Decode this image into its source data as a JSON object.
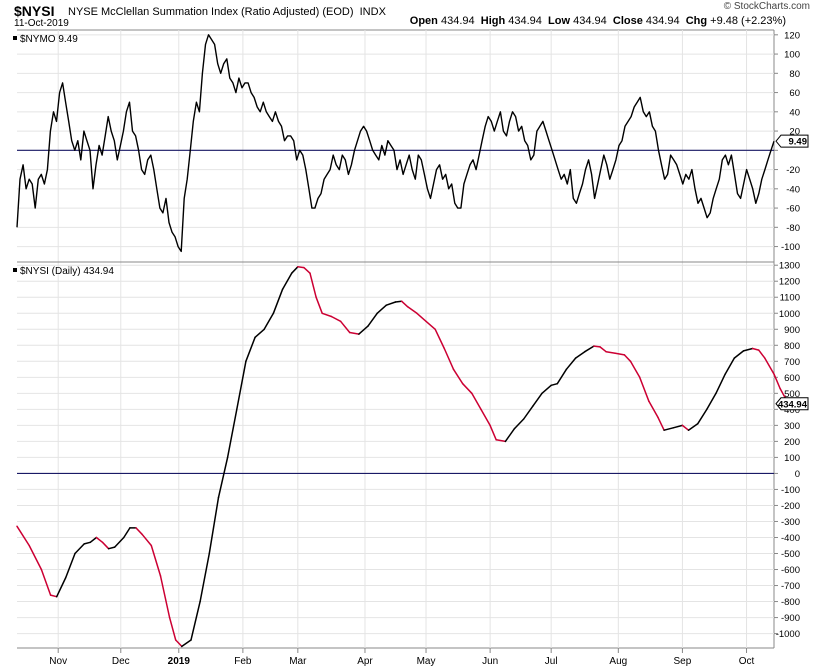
{
  "header": {
    "symbol": "$NYSI",
    "name": "NYSE McClellan Summation Index (Ratio Adjusted) (EOD)",
    "exchange": "INDX",
    "date": "11-Oct-2019",
    "open_label": "Open",
    "open": "434.94",
    "high_label": "High",
    "high": "434.94",
    "low_label": "Low",
    "low": "434.94",
    "close_label": "Close",
    "close": "434.94",
    "chg_label": "Chg",
    "chg": "+9.48 (+2.23%)",
    "brand": "© StockCharts.com"
  },
  "colors": {
    "line": "#000000",
    "decline": "#cc0033",
    "zero_line": "#1a1a66",
    "grid": "#cccccc"
  },
  "chart_data": [
    {
      "type": "line",
      "legend": "$NYMO 9.49",
      "last_value_label": "9.49",
      "ylim": [
        -115,
        125
      ],
      "yticks": [
        120,
        100,
        80,
        60,
        40,
        20,
        0,
        -20,
        -40,
        -60,
        -80,
        -100
      ],
      "ytick_labels": [
        "120",
        "100",
        "80",
        "60",
        "40",
        "20",
        "",
        "-20",
        "-40",
        "-60",
        "-80",
        "-100"
      ],
      "reference_line": 0,
      "x_range": [
        0,
        248
      ],
      "values": [
        -80,
        -30,
        -15,
        -40,
        -30,
        -35,
        -60,
        -30,
        -25,
        -35,
        -20,
        20,
        40,
        30,
        60,
        70,
        50,
        30,
        10,
        0,
        10,
        -10,
        20,
        10,
        0,
        -40,
        -15,
        5,
        -5,
        15,
        35,
        20,
        10,
        -10,
        5,
        20,
        40,
        50,
        20,
        15,
        0,
        -20,
        -25,
        -10,
        -5,
        -20,
        -40,
        -60,
        -65,
        -50,
        -75,
        -85,
        -90,
        -100,
        -105,
        -50,
        -30,
        0,
        30,
        50,
        40,
        80,
        110,
        120,
        115,
        110,
        90,
        80,
        90,
        95,
        75,
        70,
        60,
        75,
        65,
        70,
        70,
        60,
        55,
        45,
        40,
        50,
        40,
        35,
        30,
        40,
        30,
        25,
        10,
        15,
        15,
        10,
        -10,
        0,
        -5,
        -20,
        -40,
        -60,
        -60,
        -50,
        -45,
        -30,
        -25,
        -20,
        -5,
        -15,
        -20,
        -5,
        -10,
        -25,
        -15,
        0,
        10,
        20,
        25,
        20,
        10,
        0,
        -5,
        -10,
        5,
        -5,
        10,
        5,
        0,
        -20,
        -10,
        -25,
        -15,
        -5,
        -20,
        -30,
        -5,
        -10,
        -25,
        -40,
        -50,
        -35,
        -20,
        -15,
        -30,
        -25,
        -40,
        -35,
        -55,
        -60,
        -60,
        -35,
        -25,
        -15,
        -10,
        -20,
        -5,
        10,
        25,
        35,
        30,
        20,
        30,
        40,
        20,
        15,
        30,
        40,
        35,
        20,
        25,
        10,
        5,
        -10,
        -5,
        20,
        25,
        30,
        20,
        10,
        0,
        -10,
        -20,
        -30,
        -25,
        -35,
        -20,
        -50,
        -55,
        -45,
        -35,
        -20,
        -10,
        -25,
        -50,
        -35,
        -20,
        -5,
        -15,
        -30,
        -20,
        -10,
        5,
        10,
        25,
        30,
        35,
        45,
        50,
        55,
        40,
        35,
        40,
        25,
        20,
        0,
        -15,
        -30,
        -25,
        -5,
        -10,
        -15,
        -25,
        -35,
        -25,
        -30,
        -20,
        -40,
        -55,
        -50,
        -60,
        -70,
        -65,
        -50,
        -40,
        -30,
        -10,
        -5,
        -15,
        -5,
        -25,
        -45,
        -50,
        -35,
        -20,
        -30,
        -40,
        -55,
        -45,
        -30,
        -20,
        -10,
        0,
        9.49
      ]
    },
    {
      "type": "line",
      "legend": "$NYSI (Daily) 434.94",
      "last_value_label": "434.94",
      "ylim": [
        -1090,
        1320
      ],
      "yticks": [
        1300,
        1200,
        1100,
        1000,
        900,
        800,
        700,
        600,
        500,
        400,
        300,
        200,
        100,
        0,
        -100,
        -200,
        -300,
        -400,
        -500,
        -600,
        -700,
        -800,
        -900,
        -1000
      ],
      "reference_line": 0,
      "x_range": [
        0,
        248
      ],
      "x_tick_labels": [
        "Nov",
        "Dec",
        "2019",
        "Feb",
        "Mar",
        "Apr",
        "May",
        "Jun",
        "Jul",
        "Aug",
        "Sep",
        "Oct"
      ],
      "x_tick_positions": [
        13.5,
        34,
        53,
        74,
        92,
        114,
        134,
        155,
        175,
        197,
        218,
        239
      ],
      "points": [
        [
          0,
          -330
        ],
        [
          4,
          -450
        ],
        [
          8,
          -600
        ],
        [
          11,
          -760
        ],
        [
          13,
          -770
        ],
        [
          16,
          -650
        ],
        [
          19,
          -500
        ],
        [
          22,
          -440
        ],
        [
          24,
          -430
        ],
        [
          26,
          -400
        ],
        [
          28,
          -430
        ],
        [
          30,
          -470
        ],
        [
          32,
          -460
        ],
        [
          35,
          -400
        ],
        [
          37,
          -340
        ],
        [
          39,
          -340
        ],
        [
          41,
          -380
        ],
        [
          44,
          -450
        ],
        [
          47,
          -640
        ],
        [
          50,
          -900
        ],
        [
          52,
          -1040
        ],
        [
          54,
          -1080
        ],
        [
          57,
          -1040
        ],
        [
          60,
          -800
        ],
        [
          63,
          -500
        ],
        [
          66,
          -150
        ],
        [
          69,
          100
        ],
        [
          72,
          400
        ],
        [
          75,
          700
        ],
        [
          78,
          850
        ],
        [
          81,
          900
        ],
        [
          84,
          1000
        ],
        [
          87,
          1150
        ],
        [
          90,
          1250
        ],
        [
          92,
          1290
        ],
        [
          94,
          1285
        ],
        [
          96,
          1250
        ],
        [
          98,
          1100
        ],
        [
          100,
          1000
        ],
        [
          103,
          980
        ],
        [
          106,
          950
        ],
        [
          109,
          880
        ],
        [
          112,
          870
        ],
        [
          115,
          920
        ],
        [
          118,
          1000
        ],
        [
          121,
          1050
        ],
        [
          124,
          1070
        ],
        [
          126,
          1075
        ],
        [
          128,
          1040
        ],
        [
          131,
          1000
        ],
        [
          134,
          950
        ],
        [
          137,
          900
        ],
        [
          140,
          780
        ],
        [
          143,
          650
        ],
        [
          146,
          560
        ],
        [
          149,
          500
        ],
        [
          152,
          400
        ],
        [
          155,
          300
        ],
        [
          157,
          210
        ],
        [
          160,
          200
        ],
        [
          163,
          280
        ],
        [
          166,
          340
        ],
        [
          169,
          420
        ],
        [
          172,
          500
        ],
        [
          175,
          550
        ],
        [
          177,
          560
        ],
        [
          180,
          650
        ],
        [
          183,
          720
        ],
        [
          186,
          760
        ],
        [
          189,
          795
        ],
        [
          191,
          790
        ],
        [
          193,
          760
        ],
        [
          196,
          750
        ],
        [
          199,
          740
        ],
        [
          201,
          700
        ],
        [
          204,
          600
        ],
        [
          207,
          450
        ],
        [
          210,
          350
        ],
        [
          212,
          270
        ],
        [
          215,
          285
        ],
        [
          218,
          300
        ],
        [
          220,
          270
        ],
        [
          223,
          310
        ],
        [
          226,
          400
        ],
        [
          229,
          500
        ],
        [
          232,
          620
        ],
        [
          235,
          720
        ],
        [
          238,
          765
        ],
        [
          241,
          780
        ],
        [
          243,
          770
        ],
        [
          245,
          720
        ],
        [
          248,
          620
        ],
        [
          250,
          530
        ],
        [
          252,
          460
        ],
        [
          254,
          434.94
        ]
      ]
    }
  ]
}
